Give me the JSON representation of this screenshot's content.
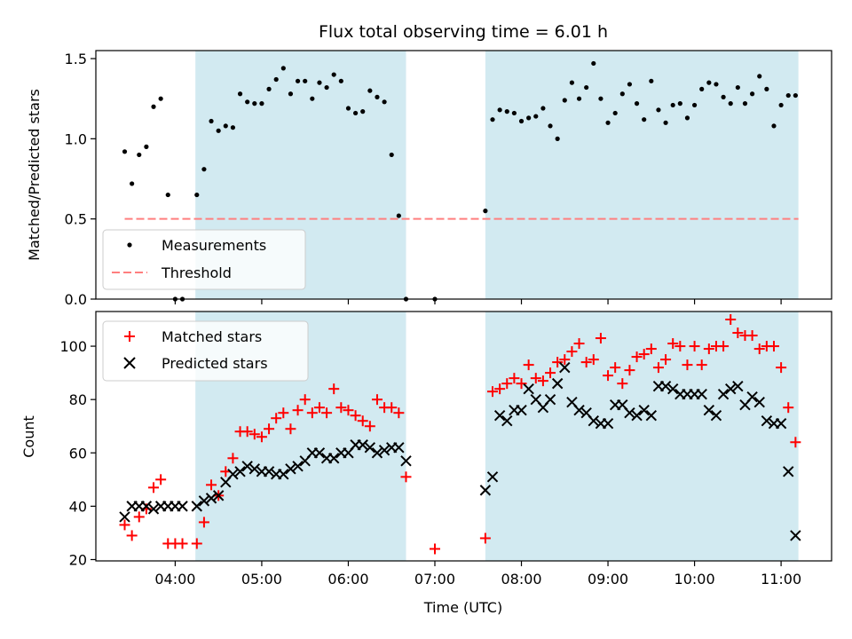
{
  "colors": {
    "shade": "#add8e6",
    "threshold": "#ff7f7f",
    "matched": "#ff0000",
    "predicted": "#000000",
    "measurement": "#000000"
  },
  "chart_data": [
    {
      "type": "scatter",
      "panel": "top",
      "title": "Flux total observing time = 6.01 h",
      "ylabel": "Matched/Predicted stars",
      "xlabel": "",
      "x_unit": "hours UTC",
      "xlim": [
        "03:05",
        "11:35"
      ],
      "ylim": [
        0,
        1.55
      ],
      "yticks": [
        0.0,
        0.5,
        1.0,
        1.5
      ],
      "ytick_labels": [
        "0.0",
        "0.5",
        "1.0",
        "1.5"
      ],
      "xticks": [
        "04:00",
        "05:00",
        "06:00",
        "07:00",
        "08:00",
        "09:00",
        "10:00",
        "11:00"
      ],
      "shaded_spans": [
        [
          "04:14",
          "06:40"
        ],
        [
          "07:35",
          "11:12"
        ]
      ],
      "legend_position": "lower-left",
      "threshold": {
        "name": "Threshold",
        "y": 0.5,
        "x_start": "03:25",
        "x_end": "11:12"
      },
      "series": [
        {
          "name": "Measurements",
          "marker": "dot",
          "x": [
            "03:25",
            "03:30",
            "03:35",
            "03:40",
            "03:45",
            "03:50",
            "03:55",
            "04:00",
            "04:05",
            "04:15",
            "04:20",
            "04:25",
            "04:30",
            "04:35",
            "04:40",
            "04:45",
            "04:50",
            "04:55",
            "05:00",
            "05:05",
            "05:10",
            "05:15",
            "05:20",
            "05:25",
            "05:30",
            "05:35",
            "05:40",
            "05:45",
            "05:50",
            "05:55",
            "06:00",
            "06:05",
            "06:10",
            "06:15",
            "06:20",
            "06:25",
            "06:30",
            "06:35",
            "06:40",
            "07:00",
            "07:35",
            "07:40",
            "07:45",
            "07:50",
            "07:55",
            "08:00",
            "08:05",
            "08:10",
            "08:15",
            "08:20",
            "08:25",
            "08:30",
            "08:35",
            "08:40",
            "08:45",
            "08:50",
            "08:55",
            "09:00",
            "09:05",
            "09:10",
            "09:15",
            "09:20",
            "09:25",
            "09:30",
            "09:35",
            "09:40",
            "09:45",
            "09:50",
            "09:55",
            "10:00",
            "10:05",
            "10:10",
            "10:15",
            "10:20",
            "10:25",
            "10:30",
            "10:35",
            "10:40",
            "10:45",
            "10:50",
            "10:55",
            "11:00",
            "11:05",
            "11:10"
          ],
          "y": [
            0.92,
            0.72,
            0.9,
            0.95,
            1.2,
            1.25,
            0.65,
            0.0,
            0.0,
            0.65,
            0.81,
            1.11,
            1.05,
            1.08,
            1.07,
            1.28,
            1.23,
            1.22,
            1.22,
            1.31,
            1.37,
            1.44,
            1.28,
            1.36,
            1.36,
            1.25,
            1.35,
            1.32,
            1.4,
            1.36,
            1.19,
            1.16,
            1.17,
            1.3,
            1.26,
            1.23,
            0.9,
            0.52,
            0.0,
            0.0,
            0.55,
            1.12,
            1.18,
            1.17,
            1.16,
            1.11,
            1.13,
            1.14,
            1.19,
            1.08,
            1.0,
            1.24,
            1.35,
            1.25,
            1.32,
            1.47,
            1.25,
            1.1,
            1.16,
            1.28,
            1.34,
            1.22,
            1.12,
            1.36,
            1.18,
            1.1,
            1.21,
            1.22,
            1.13,
            1.21,
            1.31,
            1.35,
            1.34,
            1.26,
            1.22,
            1.32,
            1.22,
            1.28,
            1.39,
            1.31,
            1.08,
            1.21,
            1.27,
            1.27
          ]
        }
      ]
    },
    {
      "type": "scatter",
      "panel": "bottom",
      "xlabel": "Time (UTC)",
      "ylabel": "Count",
      "xlim": [
        "03:05",
        "11:35"
      ],
      "ylim": [
        19.5,
        113
      ],
      "yticks": [
        20,
        40,
        60,
        80,
        100
      ],
      "ytick_labels": [
        "20",
        "40",
        "60",
        "80",
        "100"
      ],
      "xticks": [
        "04:00",
        "05:00",
        "06:00",
        "07:00",
        "08:00",
        "09:00",
        "10:00",
        "11:00"
      ],
      "xtick_labels": [
        "04:00",
        "05:00",
        "06:00",
        "07:00",
        "08:00",
        "09:00",
        "10:00",
        "11:00"
      ],
      "shaded_spans": [
        [
          "04:14",
          "06:40"
        ],
        [
          "07:35",
          "11:12"
        ]
      ],
      "legend_position": "upper-left",
      "series": [
        {
          "name": "Matched stars",
          "marker": "plus",
          "x": [
            "03:25",
            "03:30",
            "03:35",
            "03:40",
            "03:45",
            "03:50",
            "03:55",
            "04:00",
            "04:05",
            "04:15",
            "04:20",
            "04:25",
            "04:30",
            "04:35",
            "04:40",
            "04:45",
            "04:50",
            "04:55",
            "05:00",
            "05:05",
            "05:10",
            "05:15",
            "05:20",
            "05:25",
            "05:30",
            "05:35",
            "05:40",
            "05:45",
            "05:50",
            "05:55",
            "06:00",
            "06:05",
            "06:10",
            "06:15",
            "06:20",
            "06:25",
            "06:30",
            "06:35",
            "06:40",
            "07:00",
            "07:35",
            "07:40",
            "07:45",
            "07:50",
            "07:55",
            "08:00",
            "08:05",
            "08:10",
            "08:15",
            "08:20",
            "08:25",
            "08:30",
            "08:35",
            "08:40",
            "08:45",
            "08:50",
            "08:55",
            "09:00",
            "09:05",
            "09:10",
            "09:15",
            "09:20",
            "09:25",
            "09:30",
            "09:35",
            "09:40",
            "09:45",
            "09:50",
            "09:55",
            "10:00",
            "10:05",
            "10:10",
            "10:15",
            "10:20",
            "10:25",
            "10:30",
            "10:35",
            "10:40",
            "10:45",
            "10:50",
            "10:55",
            "11:00",
            "11:05",
            "11:10"
          ],
          "y": [
            33,
            29,
            36,
            39,
            47,
            50,
            26,
            26,
            26,
            26,
            34,
            48,
            44,
            53,
            58,
            68,
            68,
            67,
            66,
            69,
            73,
            75,
            69,
            76,
            80,
            75,
            77,
            75,
            84,
            77,
            76,
            74,
            72,
            70,
            80,
            77,
            77,
            75,
            51,
            24,
            28,
            83,
            84,
            86,
            88,
            86,
            93,
            88,
            87,
            90,
            94,
            95,
            98,
            101,
            94,
            95,
            103,
            89,
            92,
            86,
            91,
            96,
            97,
            99,
            92,
            95,
            101,
            100,
            93,
            100,
            93,
            99,
            100,
            100,
            110,
            105,
            104,
            104,
            99,
            100,
            100,
            92,
            77,
            64
          ]
        },
        {
          "name": "Predicted stars",
          "marker": "x",
          "x": [
            "03:25",
            "03:30",
            "03:35",
            "03:40",
            "03:45",
            "03:50",
            "03:55",
            "04:00",
            "04:05",
            "04:15",
            "04:20",
            "04:25",
            "04:30",
            "04:35",
            "04:40",
            "04:45",
            "04:50",
            "04:55",
            "05:00",
            "05:05",
            "05:10",
            "05:15",
            "05:20",
            "05:25",
            "05:30",
            "05:35",
            "05:40",
            "05:45",
            "05:50",
            "05:55",
            "06:00",
            "06:05",
            "06:10",
            "06:15",
            "06:20",
            "06:25",
            "06:30",
            "06:35",
            "06:40",
            "07:35",
            "07:40",
            "07:45",
            "07:50",
            "07:55",
            "08:00",
            "08:05",
            "08:10",
            "08:15",
            "08:20",
            "08:25",
            "08:30",
            "08:35",
            "08:40",
            "08:45",
            "08:50",
            "08:55",
            "09:00",
            "09:05",
            "09:10",
            "09:15",
            "09:20",
            "09:25",
            "09:30",
            "09:35",
            "09:40",
            "09:45",
            "09:50",
            "09:55",
            "10:00",
            "10:05",
            "10:10",
            "10:15",
            "10:20",
            "10:25",
            "10:30",
            "10:35",
            "10:40",
            "10:45",
            "10:50",
            "10:55",
            "11:00",
            "11:05",
            "11:10"
          ],
          "y": [
            36,
            40,
            40,
            40,
            39,
            40,
            40,
            40,
            40,
            40,
            42,
            43,
            44,
            49,
            52,
            53,
            55,
            54,
            53,
            53,
            52,
            52,
            54,
            55,
            57,
            60,
            60,
            58,
            58,
            60,
            60,
            63,
            63,
            62,
            60,
            61,
            62,
            62,
            57,
            46,
            51,
            74,
            72,
            76,
            76,
            84,
            80,
            77,
            80,
            86,
            92,
            79,
            76,
            75,
            72,
            71,
            71,
            78,
            78,
            75,
            74,
            76,
            74,
            85,
            85,
            84,
            82,
            82,
            82,
            82,
            76,
            74,
            82,
            84,
            85,
            78,
            81,
            79,
            72,
            71,
            71,
            53,
            29
          ]
        }
      ]
    }
  ]
}
